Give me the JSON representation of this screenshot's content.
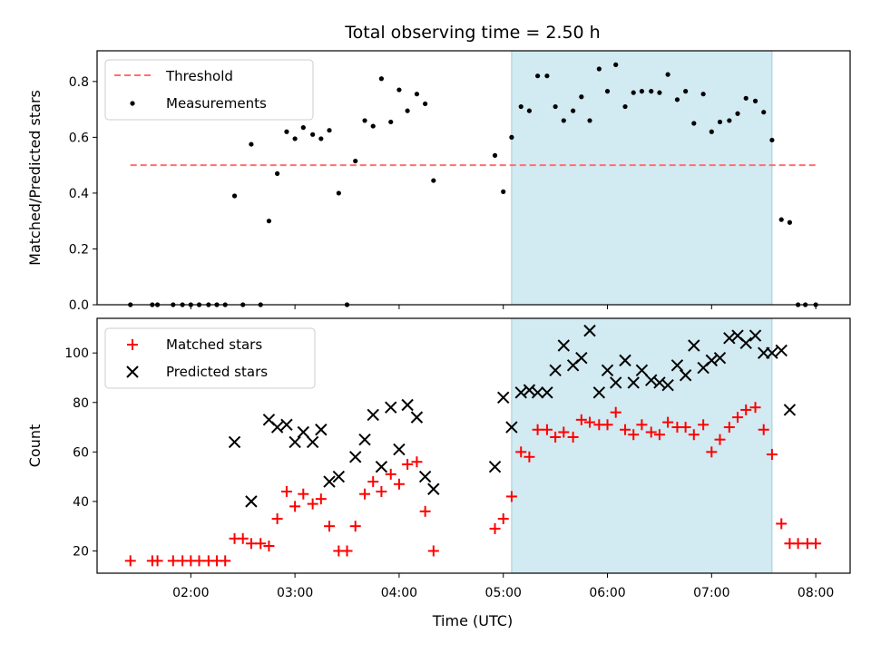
{
  "chart_data": [
    {
      "type": "scatter",
      "title": "Total observing time = 2.50 h",
      "xlabel": "",
      "ylabel": "Matched/Predicted stars",
      "x_unit": "hours UTC",
      "xlim": [
        1.1,
        8.33
      ],
      "ylim": [
        0.0,
        0.91
      ],
      "yticks": [
        0.0,
        0.2,
        0.4,
        0.6,
        0.8
      ],
      "ytick_labels": [
        "0.0",
        "0.2",
        "0.4",
        "0.6",
        "0.8"
      ],
      "xticks": [
        2,
        3,
        4,
        5,
        6,
        7,
        8
      ],
      "shaded_region": {
        "x0": 5.08,
        "x1": 7.58,
        "color": "#add8e6"
      },
      "threshold": {
        "name": "Threshold",
        "y": 0.5,
        "x0": 1.42,
        "x1": 8.0,
        "color": "#ff6f6f"
      },
      "legend": {
        "position": "upper left",
        "entries": [
          "Threshold",
          "Measurements"
        ]
      },
      "series": [
        {
          "name": "Measurements",
          "marker": "dot",
          "color": "#000000",
          "points": [
            [
              1.42,
              0.0
            ],
            [
              1.63,
              0.0
            ],
            [
              1.68,
              0.0
            ],
            [
              1.83,
              0.0
            ],
            [
              1.92,
              0.0
            ],
            [
              2.0,
              0.0
            ],
            [
              2.08,
              0.0
            ],
            [
              2.17,
              0.0
            ],
            [
              2.25,
              0.0
            ],
            [
              2.33,
              0.0
            ],
            [
              2.42,
              0.39
            ],
            [
              2.5,
              0.0
            ],
            [
              2.58,
              0.575
            ],
            [
              2.67,
              0.0
            ],
            [
              2.75,
              0.3
            ],
            [
              2.83,
              0.47
            ],
            [
              2.92,
              0.62
            ],
            [
              3.0,
              0.595
            ],
            [
              3.08,
              0.635
            ],
            [
              3.17,
              0.61
            ],
            [
              3.25,
              0.595
            ],
            [
              3.33,
              0.625
            ],
            [
              3.42,
              0.4
            ],
            [
              3.5,
              0.0
            ],
            [
              3.58,
              0.515
            ],
            [
              3.67,
              0.66
            ],
            [
              3.75,
              0.64
            ],
            [
              3.83,
              0.81
            ],
            [
              3.92,
              0.655
            ],
            [
              4.0,
              0.77
            ],
            [
              4.08,
              0.695
            ],
            [
              4.17,
              0.755
            ],
            [
              4.25,
              0.72
            ],
            [
              4.33,
              0.445
            ],
            [
              4.92,
              0.535
            ],
            [
              5.0,
              0.405
            ],
            [
              5.08,
              0.6
            ],
            [
              5.17,
              0.71
            ],
            [
              5.25,
              0.695
            ],
            [
              5.33,
              0.82
            ],
            [
              5.42,
              0.82
            ],
            [
              5.5,
              0.71
            ],
            [
              5.58,
              0.66
            ],
            [
              5.67,
              0.695
            ],
            [
              5.75,
              0.745
            ],
            [
              5.83,
              0.66
            ],
            [
              5.92,
              0.845
            ],
            [
              6.0,
              0.765
            ],
            [
              6.08,
              0.86
            ],
            [
              6.17,
              0.71
            ],
            [
              6.25,
              0.76
            ],
            [
              6.33,
              0.765
            ],
            [
              6.42,
              0.765
            ],
            [
              6.5,
              0.76
            ],
            [
              6.58,
              0.825
            ],
            [
              6.67,
              0.735
            ],
            [
              6.75,
              0.765
            ],
            [
              6.83,
              0.65
            ],
            [
              6.92,
              0.755
            ],
            [
              7.0,
              0.62
            ],
            [
              7.08,
              0.655
            ],
            [
              7.17,
              0.66
            ],
            [
              7.25,
              0.685
            ],
            [
              7.33,
              0.74
            ],
            [
              7.42,
              0.73
            ],
            [
              7.5,
              0.69
            ],
            [
              7.58,
              0.59
            ],
            [
              7.67,
              0.305
            ],
            [
              7.75,
              0.295
            ],
            [
              7.83,
              0.0
            ],
            [
              7.9,
              0.0
            ],
            [
              8.0,
              0.0
            ]
          ]
        }
      ]
    },
    {
      "type": "scatter",
      "title": "",
      "xlabel": "Time (UTC)",
      "ylabel": "Count",
      "x_unit": "hours UTC",
      "xlim": [
        1.1,
        8.33
      ],
      "ylim": [
        11,
        114
      ],
      "yticks": [
        20,
        40,
        60,
        80,
        100
      ],
      "ytick_labels": [
        "20",
        "40",
        "60",
        "80",
        "100"
      ],
      "xticks": [
        2,
        3,
        4,
        5,
        6,
        7,
        8
      ],
      "xtick_labels": [
        "02:00",
        "03:00",
        "04:00",
        "05:00",
        "06:00",
        "07:00",
        "08:00"
      ],
      "shaded_region": {
        "x0": 5.08,
        "x1": 7.58,
        "color": "#add8e6"
      },
      "legend": {
        "position": "upper left",
        "entries": [
          "Matched stars",
          "Predicted stars"
        ]
      },
      "series": [
        {
          "name": "Matched stars",
          "marker": "plus",
          "color": "#ff0000",
          "points": [
            [
              1.42,
              16
            ],
            [
              1.63,
              16
            ],
            [
              1.68,
              16
            ],
            [
              1.83,
              16
            ],
            [
              1.92,
              16
            ],
            [
              2.0,
              16
            ],
            [
              2.08,
              16
            ],
            [
              2.17,
              16
            ],
            [
              2.25,
              16
            ],
            [
              2.33,
              16
            ],
            [
              2.42,
              25
            ],
            [
              2.5,
              25
            ],
            [
              2.58,
              23
            ],
            [
              2.67,
              23
            ],
            [
              2.75,
              22
            ],
            [
              2.83,
              33
            ],
            [
              2.92,
              44
            ],
            [
              3.0,
              38
            ],
            [
              3.08,
              43
            ],
            [
              3.17,
              39
            ],
            [
              3.25,
              41
            ],
            [
              3.33,
              30
            ],
            [
              3.42,
              20
            ],
            [
              3.5,
              20
            ],
            [
              3.58,
              30
            ],
            [
              3.67,
              43
            ],
            [
              3.75,
              48
            ],
            [
              3.83,
              44
            ],
            [
              3.92,
              51
            ],
            [
              4.0,
              47
            ],
            [
              4.08,
              55
            ],
            [
              4.17,
              56
            ],
            [
              4.25,
              36
            ],
            [
              4.33,
              20
            ],
            [
              4.92,
              29
            ],
            [
              5.0,
              33
            ],
            [
              5.08,
              42
            ],
            [
              5.17,
              60
            ],
            [
              5.25,
              58
            ],
            [
              5.33,
              69
            ],
            [
              5.42,
              69
            ],
            [
              5.5,
              66
            ],
            [
              5.58,
              68
            ],
            [
              5.67,
              66
            ],
            [
              5.75,
              73
            ],
            [
              5.83,
              72
            ],
            [
              5.92,
              71
            ],
            [
              6.0,
              71
            ],
            [
              6.08,
              76
            ],
            [
              6.17,
              69
            ],
            [
              6.25,
              67
            ],
            [
              6.33,
              71
            ],
            [
              6.42,
              68
            ],
            [
              6.5,
              67
            ],
            [
              6.58,
              72
            ],
            [
              6.67,
              70
            ],
            [
              6.75,
              70
            ],
            [
              6.83,
              67
            ],
            [
              6.92,
              71
            ],
            [
              7.0,
              60
            ],
            [
              7.08,
              65
            ],
            [
              7.17,
              70
            ],
            [
              7.25,
              74
            ],
            [
              7.33,
              77
            ],
            [
              7.42,
              78
            ],
            [
              7.5,
              69
            ],
            [
              7.58,
              59
            ],
            [
              7.67,
              31
            ],
            [
              7.75,
              23
            ],
            [
              7.83,
              23
            ],
            [
              7.92,
              23
            ],
            [
              8.0,
              23
            ]
          ]
        },
        {
          "name": "Predicted stars",
          "marker": "x",
          "color": "#000000",
          "points": [
            [
              2.42,
              64
            ],
            [
              2.58,
              40
            ],
            [
              2.75,
              73
            ],
            [
              2.83,
              70
            ],
            [
              2.92,
              71
            ],
            [
              3.0,
              64
            ],
            [
              3.08,
              68
            ],
            [
              3.17,
              64
            ],
            [
              3.25,
              69
            ],
            [
              3.33,
              48
            ],
            [
              3.42,
              50
            ],
            [
              3.58,
              58
            ],
            [
              3.67,
              65
            ],
            [
              3.75,
              75
            ],
            [
              3.83,
              54
            ],
            [
              3.92,
              78
            ],
            [
              4.0,
              61
            ],
            [
              4.08,
              79
            ],
            [
              4.17,
              74
            ],
            [
              4.25,
              50
            ],
            [
              4.33,
              45
            ],
            [
              4.92,
              54
            ],
            [
              5.0,
              82
            ],
            [
              5.08,
              70
            ],
            [
              5.17,
              84
            ],
            [
              5.25,
              85
            ],
            [
              5.33,
              84
            ],
            [
              5.42,
              84
            ],
            [
              5.5,
              93
            ],
            [
              5.58,
              103
            ],
            [
              5.67,
              95
            ],
            [
              5.75,
              98
            ],
            [
              5.83,
              109
            ],
            [
              5.92,
              84
            ],
            [
              6.0,
              93
            ],
            [
              6.08,
              88
            ],
            [
              6.17,
              97
            ],
            [
              6.25,
              88
            ],
            [
              6.33,
              93
            ],
            [
              6.42,
              89
            ],
            [
              6.5,
              88
            ],
            [
              6.58,
              87
            ],
            [
              6.67,
              95
            ],
            [
              6.75,
              91
            ],
            [
              6.83,
              103
            ],
            [
              6.92,
              94
            ],
            [
              7.0,
              97
            ],
            [
              7.08,
              98
            ],
            [
              7.17,
              106
            ],
            [
              7.25,
              107
            ],
            [
              7.33,
              104
            ],
            [
              7.42,
              107
            ],
            [
              7.5,
              100
            ],
            [
              7.58,
              100
            ],
            [
              7.67,
              101
            ],
            [
              7.75,
              77
            ]
          ]
        }
      ]
    }
  ]
}
